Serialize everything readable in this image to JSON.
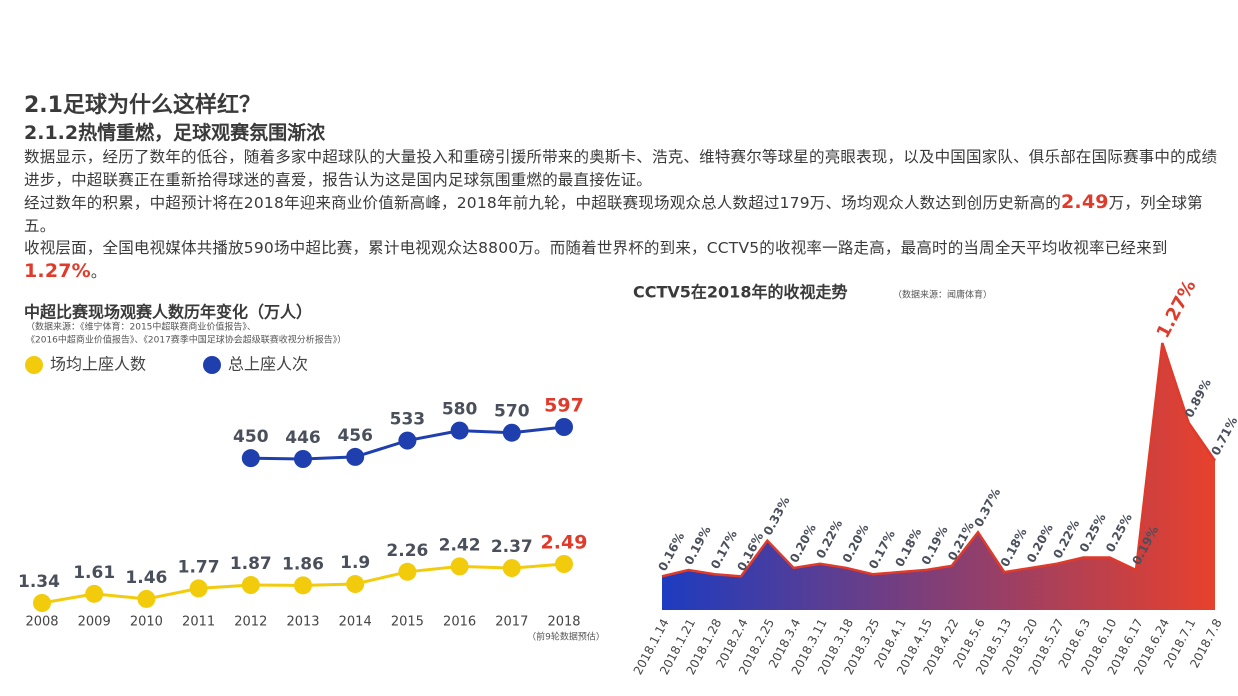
{
  "heading": "2.1足球为什么这样红？",
  "subheading": "2.1.2热情重燃，足球观赛氛围渐浓",
  "paragraphs": [
    [
      "数据显示，经历了数年的低谷，随着多家中超球队的大量投入和重磅引援所带来的奥斯卡、浩克、维特赛尔等球星的亮眼表现，以及中国国家队、俱乐部在国际赛事中的成绩进步，中超联赛正在重新拾得球迷的喜爱，报告认为这是国内足球氛围重燃的最直接佐证。"
    ],
    [
      "经过数年的积累，中超预计将在2018年迎来商业价值新高峰，2018年前九轮，中超联赛现场观众总人数超过179万、场均观众人数达到创历史新高的",
      "2.49",
      "万，列全球第五。"
    ],
    [
      "收视层面，全国电视媒体共播放590场中超比赛，累计电视观众达8800万。而随着世界杯的到来，CCTV5的收视率一路走高，最高时的当周全天平均收视率已经来到",
      "1.27%",
      "。"
    ]
  ],
  "chart_data": [
    {
      "type": "line",
      "title": "中超比赛现场观赛人数历年变化（万人）",
      "source": [
        "（数据来源：《维宁体育：2015中超联赛商业价值报告》、",
        "《2016中超商业价值报告》、《2017赛季中国足球协会超级联赛收视分析报告》）"
      ],
      "categories": [
        "2008",
        "2009",
        "2010",
        "2011",
        "2012",
        "2013",
        "2014",
        "2015",
        "2016",
        "2017",
        "2018"
      ],
      "series": [
        {
          "name": "场均上座人数",
          "color": "#f2cc0c",
          "values": [
            1.34,
            1.61,
            1.46,
            1.77,
            1.87,
            1.86,
            1.9,
            2.26,
            2.42,
            2.37,
            2.49
          ]
        },
        {
          "name": "总上座人次",
          "color": "#1f3fae",
          "values": [
            null,
            null,
            null,
            null,
            450,
            446,
            456,
            533,
            580,
            570,
            597
          ]
        }
      ],
      "highlight_color": "#e03a2a",
      "note": "（前9轮数据预估）"
    },
    {
      "type": "area",
      "title": "CCTV5在2018年的收视走势",
      "source": "（数据来源：闻庸体育）",
      "categories": [
        "2018.1.14",
        "2018.1.21",
        "2018.1.28",
        "2018.2.4",
        "2018.2.25",
        "2018.3.4",
        "2018.3.11",
        "2018.3.18",
        "2018.3.25",
        "2018.4.1",
        "2018.4.15",
        "2018.4.22",
        "2018.5.6",
        "2018.5.13",
        "2018.5.20",
        "2018.5.27",
        "2018.6.3",
        "2018.6.10",
        "2018.6.17",
        "2018.6.24",
        "2018.7.1",
        "2018.7.8"
      ],
      "values": [
        0.16,
        0.19,
        0.17,
        0.16,
        0.33,
        0.2,
        0.22,
        0.2,
        0.17,
        0.18,
        0.19,
        0.21,
        0.37,
        0.18,
        0.2,
        0.22,
        0.25,
        0.25,
        0.19,
        1.27,
        0.89,
        0.71
      ],
      "value_labels": [
        "0.16%",
        "0.19%",
        "0.17%",
        "0.16%",
        "0.33%",
        "0.20%",
        "0.22%",
        "0.20%",
        "0.17%",
        "0.18%",
        "0.19%",
        "0.21%",
        "0.37%",
        "0.18%",
        "0.20%",
        "0.22%",
        "0.25%",
        "0.25%",
        "0.19%",
        "1.27%",
        "0.89%",
        "0.71%"
      ],
      "colors": [
        "#1d3cc0",
        "#e8412c"
      ],
      "line_color": "#e03a2a",
      "highlight_color": "#e03a2a"
    }
  ]
}
